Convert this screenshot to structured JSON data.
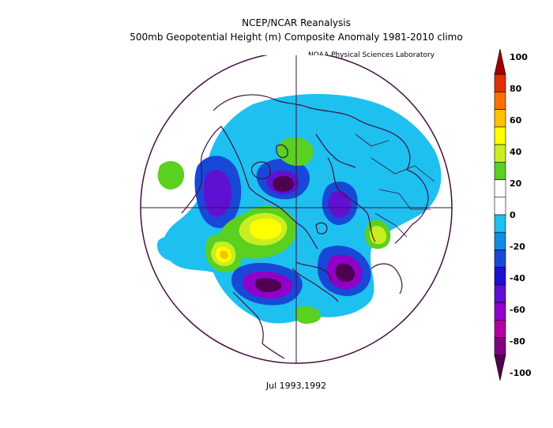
{
  "header": {
    "line1": "NCEP/NCAR Reanalysis",
    "line2": "500mb Geopotential Height (m) Composite Anomaly 1981-2010 climo",
    "credit": "NOAA Physical Sciences Laboratory"
  },
  "footer": {
    "period": "Jul 1993,1992"
  },
  "colorbar": {
    "labels": [
      "100",
      "80",
      "60",
      "40",
      "20",
      "0",
      "-20",
      "-40",
      "-60",
      "-80",
      "-100"
    ],
    "colors": [
      "#a00000",
      "#e03000",
      "#ff7000",
      "#ffc000",
      "#ffff00",
      "#c8ee20",
      "#5ad020",
      "#ffffff",
      "#ffffff",
      "#1ec0f0",
      "#108ce0",
      "#1848d8",
      "#2010d0",
      "#6010d0",
      "#9000c8",
      "#b000a0",
      "#800080",
      "#500050"
    ]
  },
  "map": {
    "colors": {
      "coast": "#401040",
      "grid": "#401040",
      "neg_light": "#1ec0f0",
      "neg_mid": "#1848d8",
      "neg_strong": "#6010d0",
      "neg_deep": "#9000c8",
      "neg_core": "#500050",
      "pos_light": "#5ad020",
      "pos_mid": "#c8ee20",
      "pos_strong": "#ffff00",
      "pos_core": "#ffc000"
    }
  }
}
